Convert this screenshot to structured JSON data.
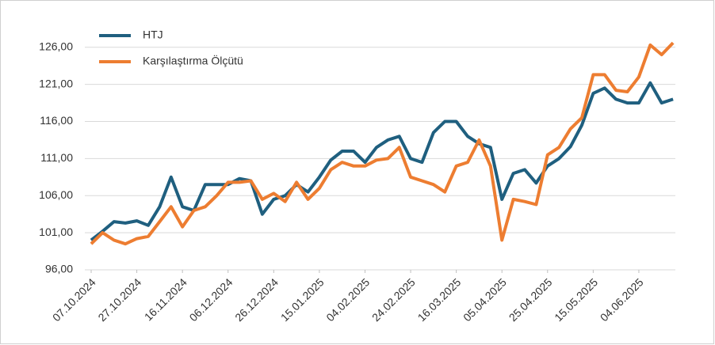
{
  "chart_data": {
    "type": "line",
    "x": [
      "07.10.2024",
      "12.10.2024",
      "17.10.2024",
      "22.10.2024",
      "27.10.2024",
      "01.11.2024",
      "06.11.2024",
      "11.11.2024",
      "16.11.2024",
      "21.11.2024",
      "26.11.2024",
      "01.12.2024",
      "06.12.2024",
      "11.12.2024",
      "16.12.2024",
      "21.12.2024",
      "26.12.2024",
      "31.12.2024",
      "05.01.2025",
      "10.01.2025",
      "15.01.2025",
      "20.01.2025",
      "25.01.2025",
      "30.01.2025",
      "04.02.2025",
      "09.02.2025",
      "14.02.2025",
      "19.02.2025",
      "24.02.2025",
      "01.03.2025",
      "06.03.2025",
      "11.03.2025",
      "16.03.2025",
      "21.03.2025",
      "26.03.2025",
      "31.03.2025",
      "05.04.2025",
      "10.04.2025",
      "15.04.2025",
      "20.04.2025",
      "25.04.2025",
      "30.04.2025",
      "05.05.2025",
      "10.05.2025",
      "15.05.2025",
      "20.05.2025",
      "25.05.2025",
      "30.05.2025",
      "04.06.2025",
      "09.06.2025",
      "14.06.2025",
      "19.06.2025"
    ],
    "series": [
      {
        "name": "HTJ",
        "color": "#1f5f7f",
        "values": [
          100,
          101.2,
          102.5,
          102.3,
          102.6,
          102,
          104.5,
          108.5,
          104.5,
          104,
          107.5,
          107.5,
          107.5,
          108.3,
          108,
          103.5,
          105.5,
          106,
          107.5,
          106.5,
          108.5,
          110.8,
          112,
          112,
          110.5,
          112.5,
          113.5,
          114,
          111,
          110.5,
          114.5,
          116,
          116,
          114,
          113,
          112.5,
          105.5,
          109,
          109.5,
          107.7,
          110,
          111,
          112.6,
          115.5,
          119.8,
          120.5,
          119,
          118.5,
          118.5,
          121.2,
          118.5,
          119
        ]
      },
      {
        "name": "Karşılaştırma Ölçütü",
        "color": "#ed7d31",
        "values": [
          99.5,
          101,
          100,
          99.5,
          100.2,
          100.5,
          102.5,
          104.5,
          101.8,
          104,
          104.5,
          106,
          107.8,
          107.8,
          108,
          105.5,
          106.3,
          105.2,
          107.8,
          105.5,
          107,
          109.5,
          110.5,
          110,
          110,
          110.8,
          111,
          112.5,
          108.5,
          108,
          107.5,
          106.5,
          110,
          110.5,
          113.5,
          110,
          100,
          105.5,
          105.2,
          104.8,
          111.5,
          112.5,
          115,
          116.5,
          122.3,
          122.3,
          120.2,
          120,
          122,
          126.3,
          125,
          126.6
        ]
      }
    ],
    "xlim": [
      "07.10.2024",
      "20.06.2025"
    ],
    "xticks": [
      "07.10.2024",
      "27.10.2024",
      "16.11.2024",
      "06.12.2024",
      "26.12.2024",
      "15.01.2025",
      "04.02.2025",
      "24.02.2025",
      "16.03.2025",
      "05.04.2025",
      "25.04.2025",
      "15.05.2025",
      "04.06.2025"
    ],
    "ylim": [
      96,
      128
    ],
    "yticks": [
      {
        "value": 96,
        "label": "96,00"
      },
      {
        "value": 101,
        "label": "101,00"
      },
      {
        "value": 106,
        "label": "106,00"
      },
      {
        "value": 111,
        "label": "111,00"
      },
      {
        "value": 116,
        "label": "116,00"
      },
      {
        "value": 121,
        "label": "121,00"
      },
      {
        "value": 126,
        "label": "126,00"
      }
    ],
    "grid": true,
    "legend": "top-left"
  }
}
